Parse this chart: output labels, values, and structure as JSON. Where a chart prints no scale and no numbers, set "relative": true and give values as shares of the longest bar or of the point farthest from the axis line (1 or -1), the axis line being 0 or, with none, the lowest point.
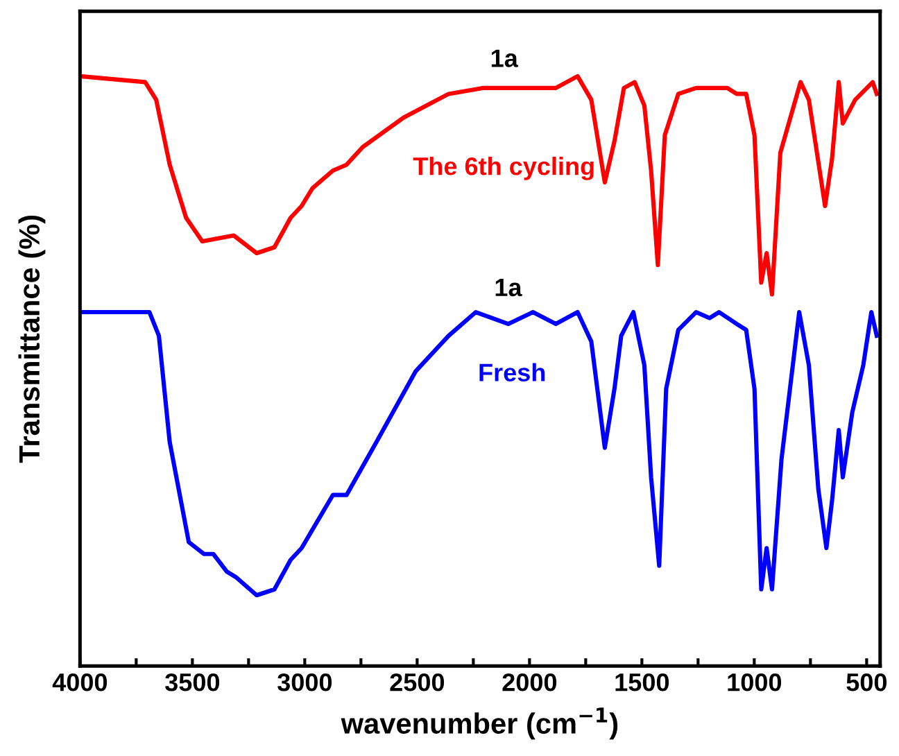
{
  "chart_data": {
    "type": "line",
    "relative": true,
    "xlabel": "wavenumber (cm$^{−1}$)",
    "ylabel": "Transmittance (%)",
    "xlim": [
      4000,
      440
    ],
    "xticks": [
      4000,
      3500,
      3000,
      2500,
      2000,
      1500,
      1000,
      500
    ],
    "grid": false,
    "legend": false,
    "marker": "none",
    "line_style": "solid",
    "annotations": [
      "1a",
      "1a"
    ],
    "series": [
      {
        "name": "The 6th cycling",
        "color": "#ff0000",
        "x": [
          4000,
          3710,
          3661,
          3601,
          3528,
          3456,
          3316,
          3214,
          3135,
          3063,
          3014,
          2966,
          2875,
          2814,
          2742,
          2560,
          2360,
          2209,
          2088,
          1985,
          1883,
          1786,
          1725,
          1665,
          1622,
          1580,
          1532,
          1489,
          1459,
          1429,
          1398,
          1338,
          1259,
          1120,
          1078,
          1036,
          999,
          969,
          945,
          921,
          884,
          794,
          757,
          685,
          654,
          624,
          606,
          551,
          473,
          455
        ],
        "values": [
          1.0,
          0.99,
          0.96,
          0.85,
          0.76,
          0.72,
          0.73,
          0.7,
          0.71,
          0.76,
          0.78,
          0.81,
          0.84,
          0.85,
          0.88,
          0.93,
          0.97,
          0.98,
          0.98,
          0.98,
          0.98,
          1.0,
          0.96,
          0.82,
          0.89,
          0.98,
          0.99,
          0.95,
          0.84,
          0.68,
          0.9,
          0.97,
          0.98,
          0.98,
          0.97,
          0.97,
          0.9,
          0.65,
          0.7,
          0.63,
          0.87,
          0.99,
          0.96,
          0.78,
          0.86,
          0.99,
          0.92,
          0.96,
          0.99,
          0.97
        ]
      },
      {
        "name": "Fresh",
        "color": "#0000ff",
        "x": [
          4000,
          3782,
          3691,
          3649,
          3601,
          3516,
          3449,
          3407,
          3347,
          3304,
          3214,
          3135,
          3063,
          3014,
          2875,
          2814,
          2681,
          2506,
          2360,
          2239,
          2094,
          1985,
          1883,
          1786,
          1725,
          1665,
          1622,
          1592,
          1538,
          1489,
          1459,
          1423,
          1392,
          1338,
          1259,
          1199,
          1157,
          1078,
          1036,
          999,
          969,
          945,
          921,
          879,
          800,
          757,
          715,
          679,
          654,
          624,
          606,
          564,
          515,
          479,
          455
        ],
        "values": [
          0.6,
          0.6,
          0.6,
          0.56,
          0.38,
          0.21,
          0.19,
          0.19,
          0.16,
          0.15,
          0.12,
          0.13,
          0.18,
          0.2,
          0.29,
          0.29,
          0.38,
          0.5,
          0.56,
          0.6,
          0.58,
          0.6,
          0.58,
          0.6,
          0.55,
          0.37,
          0.47,
          0.56,
          0.6,
          0.51,
          0.32,
          0.17,
          0.47,
          0.57,
          0.6,
          0.59,
          0.6,
          0.58,
          0.57,
          0.47,
          0.13,
          0.2,
          0.13,
          0.35,
          0.6,
          0.51,
          0.3,
          0.2,
          0.28,
          0.4,
          0.32,
          0.43,
          0.51,
          0.6,
          0.56
        ]
      }
    ]
  }
}
